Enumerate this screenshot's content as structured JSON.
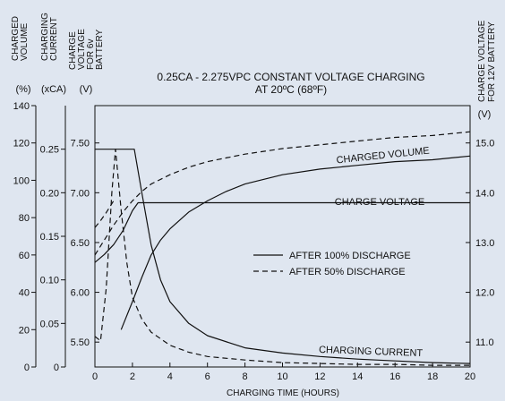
{
  "chart_data": {
    "type": "line",
    "title": "0.25CA - 2.275VPC CONSTANT VOLTAGE CHARGING",
    "subtitle": "AT 20ºC (68ºF)",
    "xlabel": "CHARGING TIME (HOURS)",
    "xlim": [
      0,
      20
    ],
    "x_ticks": [
      "0",
      "2",
      "4",
      "6",
      "8",
      "10",
      "12",
      "14",
      "16",
      "18",
      "20"
    ],
    "grid": false,
    "legend_position": "center-right",
    "axes": {
      "charged_volume": {
        "label": [
          "CHARGED",
          "VOLUME"
        ],
        "unit": "(%)",
        "range": [
          0,
          140
        ],
        "ticks": [
          "0",
          "20",
          "40",
          "60",
          "80",
          "100",
          "120",
          "140"
        ]
      },
      "charging_current": {
        "label": [
          "CHARGING",
          "CURRENT"
        ],
        "unit": "(xCA)",
        "range": [
          0,
          0.3
        ],
        "ticks": [
          "0",
          "0.05",
          "0.10",
          "0.15",
          "0.20",
          "0.25"
        ]
      },
      "voltage_6v": {
        "label": [
          "CHARGE",
          "VOLTAGE",
          "FOR 6v",
          "BATTERY"
        ],
        "unit": "(V)",
        "range": [
          5.25,
          7.875
        ],
        "ticks": [
          "5.50",
          "6.00",
          "6.50",
          "7.00",
          "7.50"
        ]
      },
      "voltage_12v": {
        "label": [
          "CHARGE VOLTAGE",
          "FOR 12V BATTERY"
        ],
        "unit": "(V)",
        "range": [
          10.5,
          15.75
        ],
        "ticks": [
          "11.0",
          "12.0",
          "13.0",
          "14.0",
          "15.0"
        ]
      }
    },
    "annotations": {
      "charged_volume": "CHARGED VOLUME",
      "charge_voltage": "CHARGE VOLTAGE",
      "charging_current": "CHARGING CURRENT"
    },
    "legend": [
      {
        "name": "AFTER 100% DISCHARGE",
        "style": "solid"
      },
      {
        "name": "AFTER 50% DISCHARGE",
        "style": "dashed"
      }
    ],
    "series": [
      {
        "quantity": "charged_volume",
        "discharge": "100%",
        "style": "solid",
        "x": [
          1.4,
          2.0,
          2.5,
          3,
          3.5,
          4,
          5,
          6,
          7,
          8,
          10,
          12,
          14,
          16,
          18,
          20
        ],
        "y": [
          20,
          35,
          48,
          60,
          68,
          74,
          83,
          89,
          94,
          98,
          103,
          106,
          108,
          110,
          111,
          113
        ]
      },
      {
        "quantity": "charged_volume",
        "discharge": "50%",
        "style": "dashed",
        "x": [
          0,
          0.5,
          1,
          1.5,
          2,
          2.5,
          3,
          4,
          5,
          6,
          7,
          8,
          10,
          12,
          14,
          16,
          18,
          20
        ],
        "y": [
          60,
          68,
          76,
          83,
          89,
          94,
          98,
          103,
          107,
          110,
          112,
          114,
          117,
          119,
          121,
          123,
          124,
          126
        ]
      },
      {
        "quantity": "charging_current",
        "discharge": "100%",
        "style": "solid",
        "x": [
          0,
          2.1,
          2.5,
          3,
          3.5,
          4,
          5,
          6,
          8,
          10,
          12,
          14,
          16,
          18,
          20
        ],
        "y": [
          0.25,
          0.25,
          0.2,
          0.14,
          0.1,
          0.075,
          0.05,
          0.036,
          0.022,
          0.016,
          0.012,
          0.009,
          0.007,
          0.005,
          0.004
        ]
      },
      {
        "quantity": "charging_current",
        "discharge": "50%",
        "style": "dashed",
        "x": [
          0,
          0.3,
          0.6,
          0.9,
          1.1,
          1.4,
          1.7,
          2.0,
          2.5,
          3,
          4,
          5,
          6,
          8,
          10,
          12,
          14,
          16,
          18,
          20
        ],
        "y": [
          0.035,
          0.03,
          0.09,
          0.2,
          0.25,
          0.18,
          0.12,
          0.08,
          0.055,
          0.04,
          0.025,
          0.017,
          0.012,
          0.008,
          0.005,
          0.004,
          0.003,
          0.003,
          0.002,
          0.002
        ]
      },
      {
        "quantity": "charge_voltage_6v",
        "discharge": "100%",
        "style": "solid",
        "x": [
          0,
          0.5,
          1,
          1.5,
          2,
          2.3,
          20
        ],
        "y": [
          6.3,
          6.38,
          6.48,
          6.62,
          6.82,
          6.9,
          6.9
        ]
      },
      {
        "quantity": "charge_voltage_6v",
        "discharge": "50%",
        "style": "dashed",
        "x": [
          0,
          0.3,
          0.6,
          1.0
        ],
        "y": [
          6.65,
          6.72,
          6.8,
          6.92
        ]
      }
    ]
  }
}
